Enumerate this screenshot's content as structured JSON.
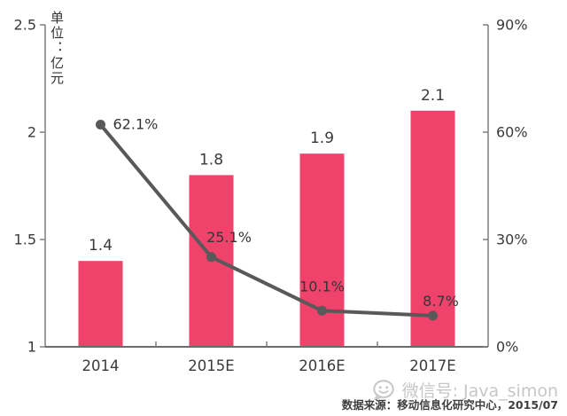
{
  "chart_data": {
    "type": "combo_bar_line",
    "categories": [
      "2014",
      "2015E",
      "2016E",
      "2017E"
    ],
    "bar_series": {
      "axis": "left",
      "values": [
        1.4,
        1.8,
        1.9,
        2.1
      ],
      "labels": [
        "1.4",
        "1.8",
        "1.9",
        "2.1"
      ],
      "color": "#F0436B"
    },
    "line_series": {
      "axis": "right",
      "values": [
        62.1,
        25.1,
        10.1,
        8.7
      ],
      "labels": [
        "62.1%",
        "25.1%",
        "10.1%",
        "8.7%"
      ],
      "color": "#595959"
    },
    "left_axis": {
      "min": 1,
      "max": 2.5,
      "tick_values": [
        2.5,
        2,
        1.5,
        1
      ],
      "tick_labels": [
        "2.5",
        "2",
        "1.5",
        "1"
      ]
    },
    "right_axis": {
      "min": 0,
      "max": 90,
      "tick_values": [
        90,
        60,
        30,
        0
      ],
      "tick_labels": [
        "90%",
        "60%",
        "30%",
        "0%"
      ]
    },
    "unit_title": "单位：亿元",
    "grid": false,
    "legend": false,
    "label_color": "#3a3a3a",
    "axis_color": "#7f7f7f"
  },
  "watermark": {
    "icon": "wechat-icon",
    "text": "微信号: Java_simon"
  },
  "source_note": "数据来源：移动信息化研究中心，2015/07"
}
